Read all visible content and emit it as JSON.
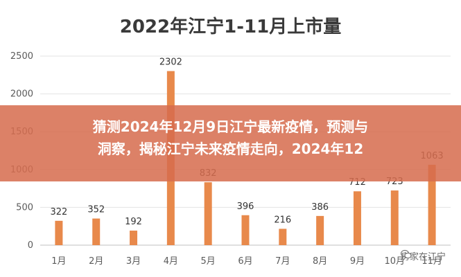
{
  "chart_data": {
    "type": "bar",
    "title": "2022年江宁1-11月上市量",
    "categories": [
      "1月",
      "2月",
      "3月",
      "4月",
      "5月",
      "6月",
      "7月",
      "8月",
      "9月",
      "10月",
      "11月"
    ],
    "values": [
      322,
      352,
      192,
      2302,
      832,
      396,
      216,
      386,
      712,
      723,
      1063
    ],
    "ylim": [
      0,
      2500
    ],
    "yticks": [
      0,
      500,
      1000,
      1500,
      2000,
      2500
    ],
    "grid": true,
    "bar_color": "#E8894B"
  },
  "overlay": {
    "line1": "猜测2024年12月9日江宁最新疫情，预测与",
    "line2": "洞察，揭秘江宁未来疫情走向，2024年12"
  },
  "watermark": {
    "text": "房家在江宁",
    "icon": "wechat-icon"
  }
}
